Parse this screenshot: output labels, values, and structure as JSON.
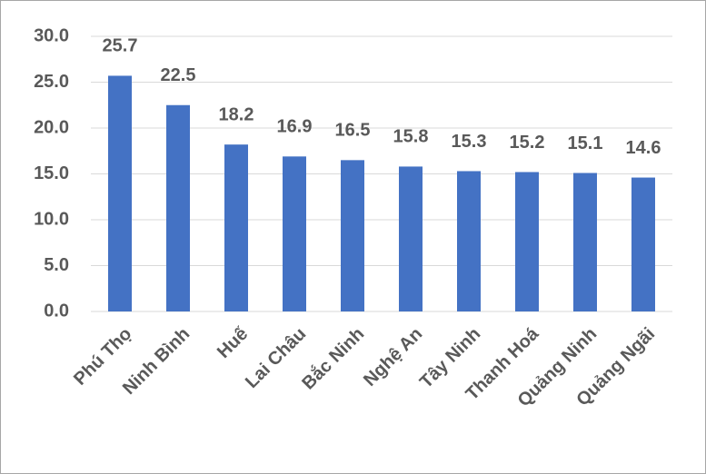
{
  "chart_data": {
    "type": "bar",
    "categories": [
      "Phú Thọ",
      "Ninh Bình",
      "Huế",
      "Lai Châu",
      "Bắc Ninh",
      "Nghệ An",
      "Tây Ninh",
      "Thanh Hoá",
      "Quảng Ninh",
      "Quảng Ngãi"
    ],
    "values": [
      25.7,
      22.5,
      18.2,
      16.9,
      16.5,
      15.8,
      15.3,
      15.2,
      15.1,
      14.6
    ],
    "color": "#4472c4",
    "ylim": [
      0,
      30
    ],
    "yticks": [
      {
        "value": 0,
        "label": "0.0"
      },
      {
        "value": 5,
        "label": "5.0"
      },
      {
        "value": 10,
        "label": "10.0"
      },
      {
        "value": 15,
        "label": "15.0"
      },
      {
        "value": 20,
        "label": "20.0"
      },
      {
        "value": 25,
        "label": "25.0"
      },
      {
        "value": 30,
        "label": "30.0"
      }
    ],
    "grid": true
  }
}
